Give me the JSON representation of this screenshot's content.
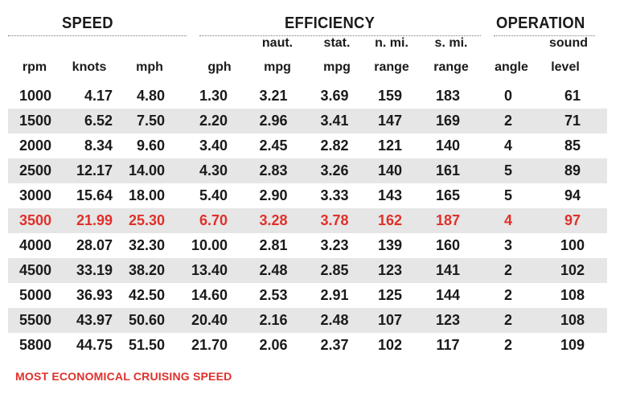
{
  "chart_data": {
    "type": "table",
    "column_groups": [
      "SPEED",
      "EFFICIENCY",
      "OPERATION"
    ],
    "headers_top": [
      "",
      "",
      "",
      "",
      "naut.",
      "stat.",
      "n. mi.",
      "s. mi.",
      "",
      "sound"
    ],
    "headers_bottom": [
      "rpm",
      "knots",
      "mph",
      "gph",
      "mpg",
      "mpg",
      "range",
      "range",
      "angle",
      "level"
    ],
    "rows": [
      [
        "1000",
        "4.17",
        "4.80",
        "1.30",
        "3.21",
        "3.69",
        "159",
        "183",
        "0",
        "61"
      ],
      [
        "1500",
        "6.52",
        "7.50",
        "2.20",
        "2.96",
        "3.41",
        "147",
        "169",
        "2",
        "71"
      ],
      [
        "2000",
        "8.34",
        "9.60",
        "3.40",
        "2.45",
        "2.82",
        "121",
        "140",
        "4",
        "85"
      ],
      [
        "2500",
        "12.17",
        "14.00",
        "4.30",
        "2.83",
        "3.26",
        "140",
        "161",
        "5",
        "89"
      ],
      [
        "3000",
        "15.64",
        "18.00",
        "5.40",
        "2.90",
        "3.33",
        "143",
        "165",
        "5",
        "94"
      ],
      [
        "3500",
        "21.99",
        "25.30",
        "6.70",
        "3.28",
        "3.78",
        "162",
        "187",
        "4",
        "97"
      ],
      [
        "4000",
        "28.07",
        "32.30",
        "10.00",
        "2.81",
        "3.23",
        "139",
        "160",
        "3",
        "100"
      ],
      [
        "4500",
        "33.19",
        "38.20",
        "13.40",
        "2.48",
        "2.85",
        "123",
        "141",
        "2",
        "102"
      ],
      [
        "5000",
        "36.93",
        "42.50",
        "14.60",
        "2.53",
        "2.91",
        "125",
        "144",
        "2",
        "108"
      ],
      [
        "5500",
        "43.97",
        "50.60",
        "20.40",
        "2.16",
        "2.48",
        "107",
        "123",
        "2",
        "108"
      ],
      [
        "5800",
        "44.75",
        "51.50",
        "21.70",
        "2.06",
        "2.37",
        "102",
        "117",
        "2",
        "109"
      ]
    ],
    "highlight_row": 5,
    "highlight_color": "#e0302a",
    "stripe_color": "#e6e6e6",
    "footnote": "MOST ECONOMICAL CRUISING SPEED"
  }
}
